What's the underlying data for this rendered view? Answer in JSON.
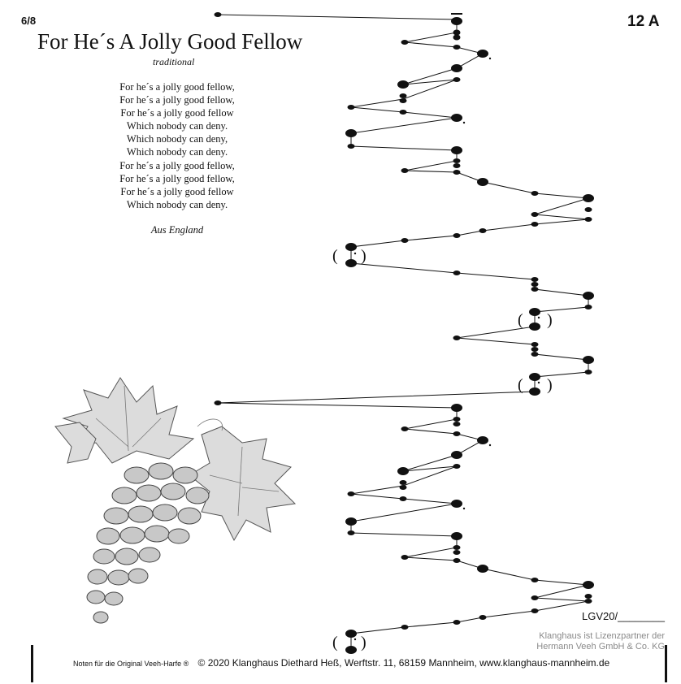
{
  "header": {
    "time_signature": "6/8",
    "sheet_number": "12 A",
    "title": "For He´s A Jolly Good Fellow",
    "subtitle": "traditional"
  },
  "lyrics": [
    "For he´s a jolly good fellow,",
    "For he´s a jolly good fellow,",
    "For he´s a jolly good fellow",
    "Which nobody can deny.",
    "Which nobody can deny,",
    "Which nobody can deny.",
    "For he´s a jolly good fellow,",
    "For he´s a jolly good fellow,",
    "For he´s a jolly good fellow",
    "Which nobody can deny."
  ],
  "origin": "Aus England",
  "catalog_number": "LGV20/________",
  "partner_note": {
    "line1": "Klanghaus ist Lizenzpartner der",
    "line2": "Hermann Veeh GmbH & Co. KG"
  },
  "footer": {
    "instrument_note": "Noten für die Original Veeh-Harfe ®",
    "copyright": "© 2020 Klanghaus Diethard Heß, Werftstr. 11, 68159 Mannheim, www.klanghaus-mannheim.de"
  },
  "illustration": "grape-bunch-icon"
}
